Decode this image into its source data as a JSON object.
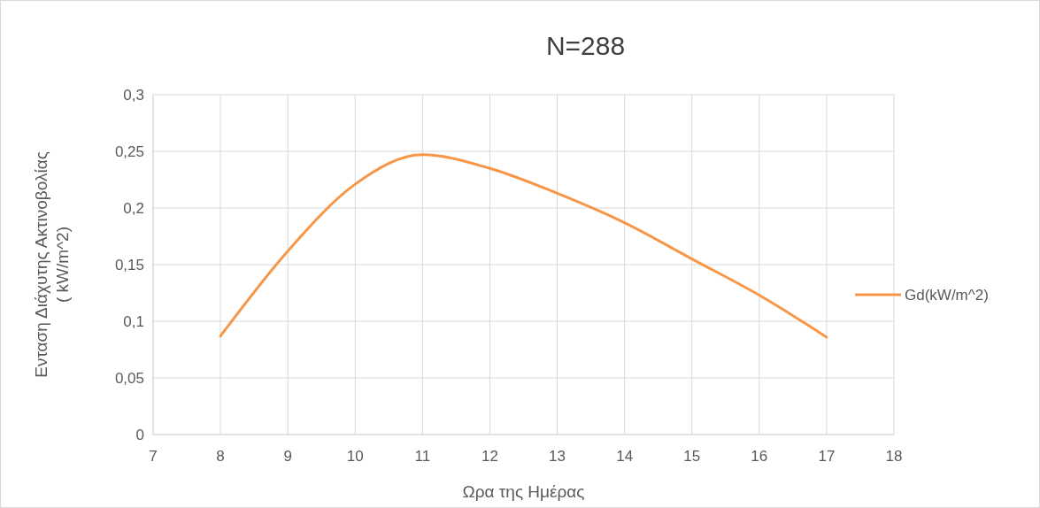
{
  "chart_data": {
    "type": "line",
    "title": "N=288",
    "xlabel": "Ωρα της Ημέρας",
    "ylabel": "Ενταση Διάχυτης  Ακτινοβολίας\n( kW/m^2)",
    "x": [
      8,
      9,
      10,
      11,
      12,
      13,
      14,
      15,
      16,
      17
    ],
    "series": [
      {
        "name": "Gd(kW/m^2)",
        "color": "#f79646",
        "values": [
          0.087,
          0.162,
          0.221,
          0.247,
          0.235,
          0.213,
          0.187,
          0.155,
          0.123,
          0.086
        ]
      }
    ],
    "xlim": [
      7,
      18
    ],
    "xticks": [
      7,
      8,
      9,
      10,
      11,
      12,
      13,
      14,
      15,
      16,
      17,
      18
    ],
    "ylim": [
      0,
      0.3
    ],
    "yticks": [
      {
        "value": 0,
        "label": "0"
      },
      {
        "value": 0.05,
        "label": "0,05"
      },
      {
        "value": 0.1,
        "label": "0,1"
      },
      {
        "value": 0.15,
        "label": "0,15"
      },
      {
        "value": 0.2,
        "label": "0,2"
      },
      {
        "value": 0.25,
        "label": "0,25"
      },
      {
        "value": 0.3,
        "label": "0,3"
      }
    ],
    "grid": true,
    "legend": "right",
    "marker": "none",
    "line_style": "solid"
  }
}
